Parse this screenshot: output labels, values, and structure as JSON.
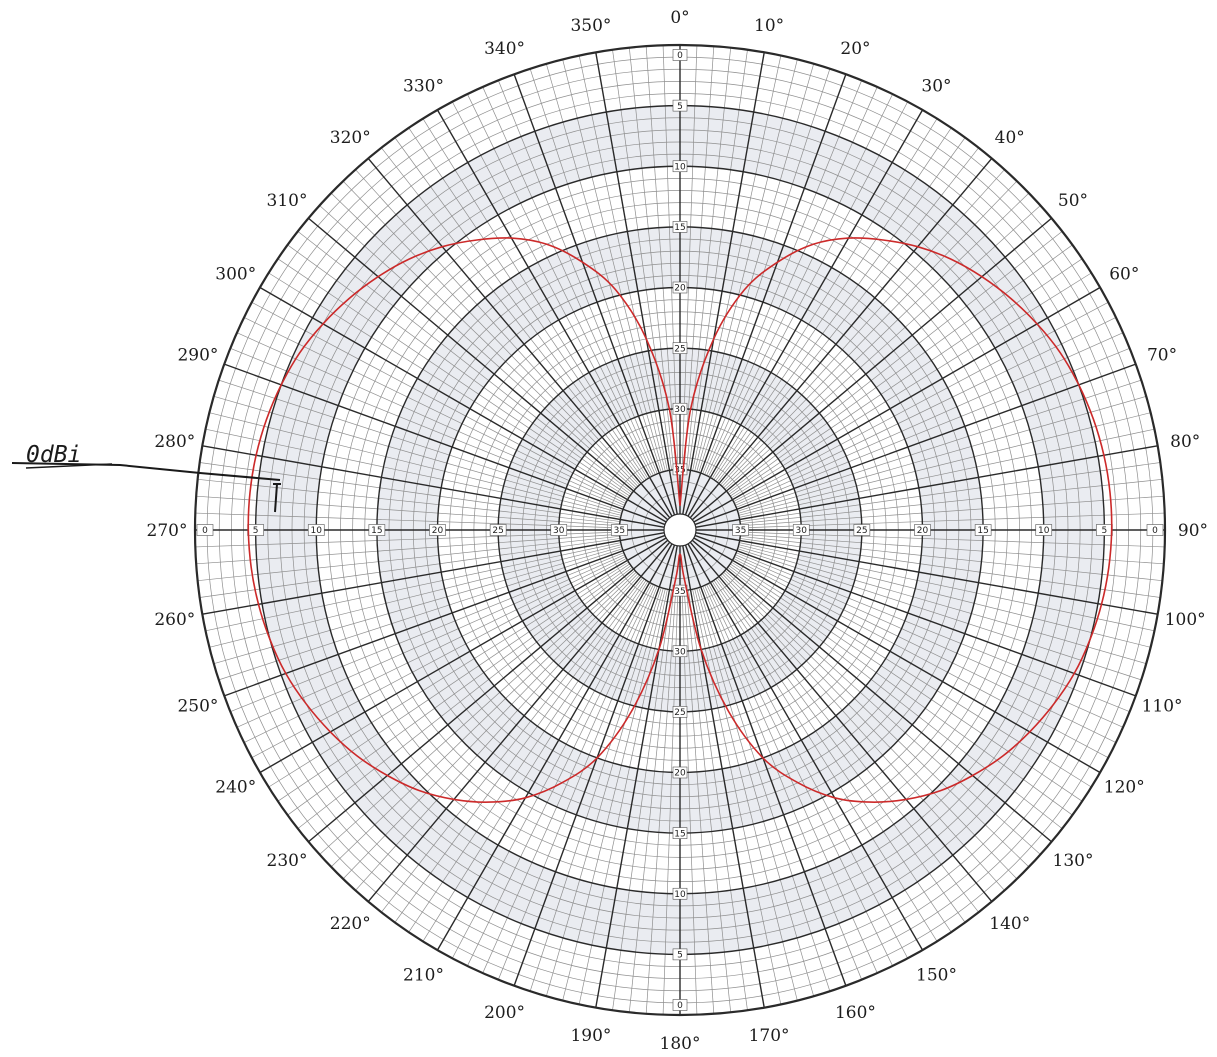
{
  "chart_data": {
    "type": "polar",
    "angle_labels": [
      "0°",
      "10°",
      "20°",
      "30°",
      "40°",
      "50°",
      "60°",
      "70°",
      "80°",
      "90°",
      "100°",
      "110°",
      "120°",
      "130°",
      "140°",
      "150°",
      "160°",
      "170°",
      "180°",
      "190°",
      "200°",
      "210°",
      "220°",
      "230°",
      "240°",
      "250°",
      "260°",
      "270°",
      "280°",
      "290°",
      "300°",
      "310°",
      "320°",
      "330°",
      "340°",
      "350°"
    ],
    "radial_labels": [
      "0",
      "5",
      "10",
      "15",
      "20",
      "25",
      "30",
      "35"
    ],
    "radial_scale": {
      "outer": 0,
      "inner": 40,
      "unit": "dB down"
    },
    "series": [
      {
        "color": "#cc2a2a",
        "angles_deg": [
          0,
          5,
          10,
          15,
          20,
          25,
          30,
          35,
          40,
          45,
          50,
          55,
          60,
          65,
          70,
          75,
          80,
          85,
          90,
          95,
          100,
          105,
          110,
          115,
          120,
          125,
          130,
          135,
          140,
          145,
          150,
          155,
          160,
          165,
          170,
          175,
          180,
          185,
          190,
          195,
          200,
          205,
          210,
          215,
          220,
          225,
          230,
          235,
          240,
          245,
          250,
          255,
          260,
          265,
          270,
          275,
          280,
          285,
          290,
          295,
          300,
          305,
          310,
          315,
          320,
          325,
          330,
          335,
          340,
          345,
          350,
          355,
          360
        ],
        "values_db": [
          38,
          30,
          24,
          19.5,
          16.5,
          14,
          12.2,
          10.8,
          9.5,
          8.4,
          7.5,
          6.7,
          6,
          5.4,
          5,
          4.7,
          4.5,
          4.4,
          4.4,
          4.5,
          4.7,
          5,
          5.4,
          6,
          6.7,
          7.5,
          8.5,
          9.6,
          11,
          12.6,
          14.5,
          17,
          20,
          24.5,
          30,
          36,
          38,
          36,
          30,
          24.5,
          20,
          17,
          14.5,
          12.6,
          11,
          9.6,
          8.5,
          7.5,
          6.7,
          6,
          5.4,
          5,
          4.7,
          4.5,
          4.4,
          4.4,
          4.5,
          4.7,
          5,
          5.4,
          6,
          6.7,
          7.5,
          8.4,
          9.5,
          10.8,
          12.2,
          14,
          16.5,
          19.5,
          24,
          30,
          38
        ]
      }
    ],
    "annotation": {
      "text": "0dBi"
    }
  },
  "colors": {
    "grid_fine": "#8f8f8f",
    "grid_major": "#2a2a2a",
    "shade_band": "#d9dce6",
    "pattern": "#cc2a2a",
    "ink": "#1d1d1d"
  }
}
